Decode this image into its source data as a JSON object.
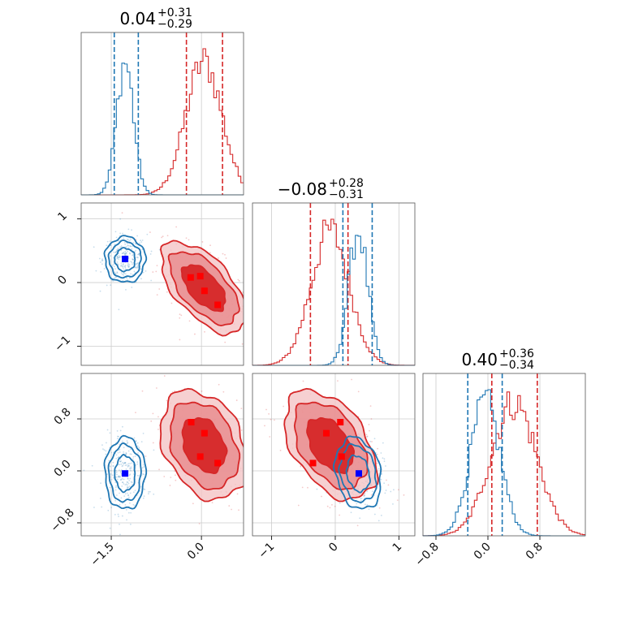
{
  "chart_data": {
    "type": "corner",
    "colors": {
      "red": "#d62728",
      "blue": "#1f77b4",
      "red_fill": "#e88a8c",
      "red_dark": "#d62728",
      "marker_red": "#ff0000",
      "marker_blue": "#0000ff"
    },
    "grid": true,
    "parameter_ranges": [
      {
        "min": -2.0,
        "max": 0.7
      },
      {
        "min": -1.3,
        "max": 1.25
      },
      {
        "min": -1.0,
        "max": 1.5
      }
    ],
    "titles": [
      {
        "value": "0.04",
        "plus": "+0.31",
        "minus": "−0.29"
      },
      {
        "value": "−0.08",
        "plus": "+0.28",
        "minus": "−0.31"
      },
      {
        "value": "0.40",
        "plus": "+0.36",
        "minus": "−0.34"
      }
    ],
    "ticks": {
      "p0_x": [
        {
          "v": -1.5,
          "label": "−1.5"
        },
        {
          "v": 0.0,
          "label": "0.0"
        }
      ],
      "p1_y": [
        {
          "v": 1,
          "label": "1"
        },
        {
          "v": 0,
          "label": "0"
        },
        {
          "v": -1,
          "label": "−1"
        }
      ],
      "p1_x": [
        {
          "v": -1,
          "label": "−1"
        },
        {
          "v": 0,
          "label": "0"
        },
        {
          "v": 1,
          "label": "1"
        }
      ],
      "p2_y": [
        {
          "v": 0.8,
          "label": "0.8"
        },
        {
          "v": 0.0,
          "label": "0.0"
        },
        {
          "v": -0.8,
          "label": "−0.8"
        }
      ],
      "p2_x": [
        {
          "v": -0.8,
          "label": "−0.8"
        },
        {
          "v": 0.0,
          "label": "0.0"
        },
        {
          "v": 0.8,
          "label": "0.8"
        }
      ]
    },
    "series": [
      {
        "color": "red",
        "filled": true,
        "means": [
          0.04,
          -0.08,
          0.4
        ],
        "sigmas": [
          0.3,
          0.3,
          0.35
        ],
        "quantile_lines": [
          [
            -0.25,
            0.35
          ],
          [
            -0.39,
            0.2
          ],
          [
            0.06,
            0.76
          ]
        ],
        "correlations": {
          "1_0": -0.6,
          "2_0": -0.3,
          "2_1": -0.45
        },
        "markers": {
          "1_0": [
            [
              -0.18,
              0.08
            ],
            [
              -0.02,
              0.1
            ],
            [
              0.05,
              -0.13
            ],
            [
              0.27,
              -0.35
            ]
          ],
          "2_0": [
            [
              -0.17,
              0.75
            ],
            [
              0.05,
              0.58
            ],
            [
              -0.02,
              0.22
            ],
            [
              0.27,
              0.12
            ]
          ],
          "2_1": [
            [
              -0.35,
              0.12
            ],
            [
              -0.14,
              0.58
            ],
            [
              0.08,
              0.75
            ],
            [
              0.1,
              0.22
            ]
          ]
        }
      },
      {
        "color": "blue",
        "filled": false,
        "means": [
          -1.27,
          0.36,
          -0.04
        ],
        "sigmas": [
          0.14,
          0.15,
          0.23
        ],
        "quantile_lines": [
          [
            -1.45,
            -1.05
          ],
          [
            0.12,
            0.58
          ],
          [
            -0.31,
            0.22
          ]
        ],
        "correlations": {
          "1_0": 0.0,
          "2_0": 0.0,
          "2_1": -0.2
        },
        "markers": {
          "1_0": [
            [
              -1.27,
              0.37
            ]
          ],
          "2_0": [
            [
              -1.27,
              -0.04
            ]
          ],
          "2_1": [
            [
              0.37,
              -0.04
            ]
          ]
        }
      }
    ]
  }
}
